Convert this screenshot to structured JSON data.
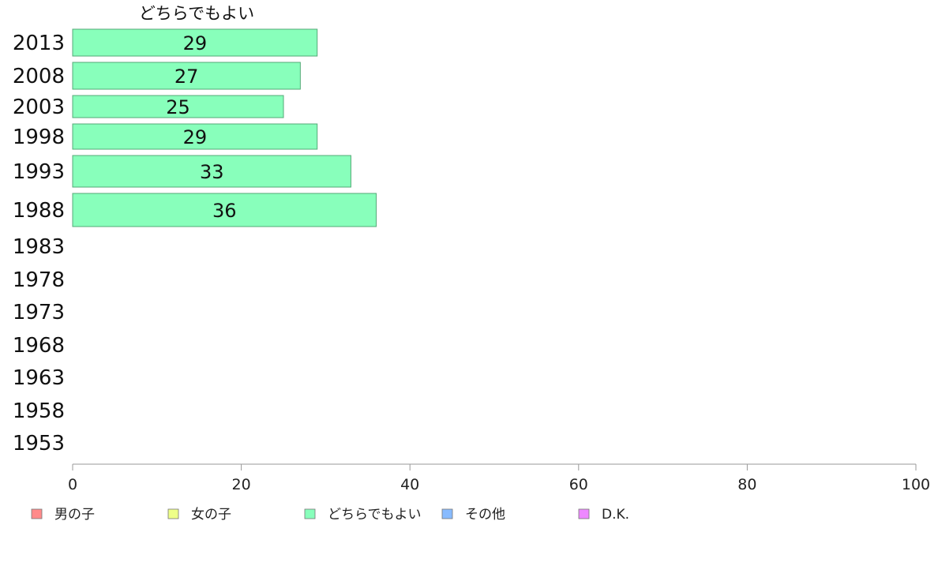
{
  "chart_data": {
    "type": "bar",
    "orientation": "horizontal",
    "categories": [
      "2013",
      "2008",
      "2003",
      "1998",
      "1993",
      "1988",
      "1983",
      "1978",
      "1973",
      "1968",
      "1963",
      "1958",
      "1953"
    ],
    "series": [
      {
        "name": "どちらでもよい",
        "values": [
          29,
          27,
          25,
          29,
          33,
          36,
          null,
          null,
          null,
          null,
          null,
          null,
          null
        ]
      }
    ],
    "series_title": "どちらでもよい",
    "xlim": [
      0,
      100
    ],
    "xticks": [
      0,
      20,
      40,
      60,
      80,
      100
    ],
    "grid": false,
    "legend_position": "bottom",
    "legend": [
      {
        "label": "男の子",
        "color": "#ff8a8a"
      },
      {
        "label": "女の子",
        "color": "#eeff88"
      },
      {
        "label": "どちらでもよい",
        "color": "#88ffbb"
      },
      {
        "label": "その他",
        "color": "#88bbff"
      },
      {
        "label": "D.K.",
        "color": "#ee88ff"
      }
    ],
    "bar_color": "#88ffbb",
    "bar_stroke": "#55aa77"
  }
}
